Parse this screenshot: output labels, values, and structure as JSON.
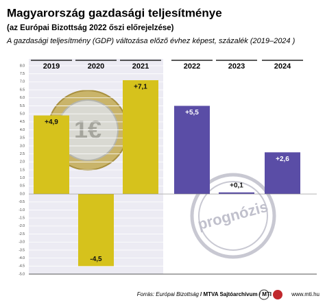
{
  "chart_data": {
    "type": "bar",
    "title": "Magyarország gazdasági teljesítménye",
    "subtitle": "(az Európai Bizottság 2022 őszi előrejelzése)",
    "description": "A gazdasági teljesítmény (GDP) változása előző évhez képest, százalék (2019–2024 )",
    "categories": [
      "2019",
      "2020",
      "2021",
      "2022",
      "2023",
      "2024"
    ],
    "values": [
      4.9,
      -4.5,
      7.1,
      5.5,
      0.1,
      2.6
    ],
    "value_labels": [
      "+4,9",
      "-4,5",
      "+7,1",
      "+5,5",
      "+0,1",
      "+2,6"
    ],
    "colors": [
      "#d6c21c",
      "#d6c21c",
      "#d6c21c",
      "#5a4da6",
      "#5a4da6",
      "#5a4da6"
    ],
    "ylim": [
      -5,
      8
    ],
    "yticks": [
      {
        "value": 8,
        "label": "8.0"
      },
      7.5,
      {
        "value": 7,
        "label": "7.0"
      },
      6.5,
      {
        "value": 6,
        "label": "6.0"
      },
      5.5,
      {
        "value": 5,
        "label": "5.0"
      },
      4.5,
      {
        "value": 4,
        "label": "4.0"
      },
      3.5,
      {
        "value": 3,
        "label": "3.0"
      },
      2.5,
      {
        "value": 2,
        "label": "2.0"
      },
      1.5,
      {
        "value": 1,
        "label": "1.0"
      },
      0.5,
      {
        "value": 0,
        "label": "0.0"
      },
      -0.5,
      {
        "value": -1,
        "label": "-1.0"
      },
      -1.5,
      {
        "value": -2,
        "label": "-2.0"
      },
      -2.5,
      {
        "value": -3,
        "label": "-3.0"
      },
      -3.5,
      {
        "value": -4,
        "label": "-4.0"
      },
      -4.5,
      {
        "value": -5,
        "label": "-5.0"
      }
    ],
    "grid": true,
    "annotation": "prognózis",
    "source": "Forrás: Európai Bizottság",
    "credit": "/ MTVA Sajtóarchívum / MTI",
    "website": "www.mti.hu"
  }
}
